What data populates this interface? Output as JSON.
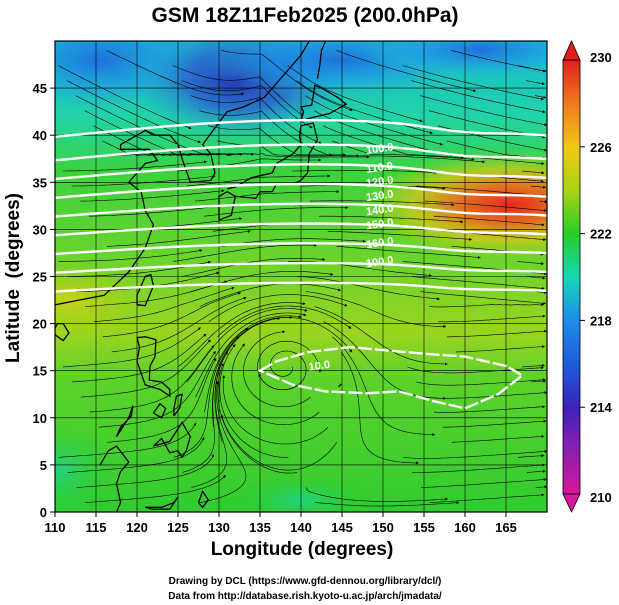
{
  "chart_data": {
    "type": "heatmap",
    "title": "GSM 18Z11Feb2025 (200.0hPa)",
    "xlabel": "Longitude (degrees)",
    "ylabel": "Latitude  (degrees)",
    "xlim": [
      110,
      170
    ],
    "ylim": [
      0,
      50
    ],
    "x_ticks": [
      "110",
      "115",
      "120",
      "125",
      "130",
      "135",
      "140",
      "145",
      "150",
      "155",
      "160",
      "165"
    ],
    "y_ticks": [
      "0",
      "5",
      "10",
      "15",
      "20",
      "25",
      "30",
      "35",
      "40",
      "45"
    ],
    "colorbar": {
      "range": [
        210,
        230
      ],
      "ticks": [
        "210",
        "214",
        "218",
        "222",
        "226",
        "230"
      ],
      "colors": [
        "#d8189a",
        "#3c22b8",
        "#1e8ce8",
        "#14d8b4",
        "#28cc28",
        "#a8d414",
        "#f0c814",
        "#f07a1e",
        "#e01e1e"
      ]
    },
    "field_estimates": [
      {
        "region": "northwest corner (near 110E 48N)",
        "value": 215
      },
      {
        "region": "east of Japan core (near 133E 45N)",
        "value": 213.5
      },
      {
        "region": "warm band (near 162E 34N)",
        "value": 227.5
      },
      {
        "region": "subtropical belt (25-32N)",
        "value": 223
      },
      {
        "region": "tropics (0-20N)",
        "value": 220.5
      }
    ],
    "contour_labels": [
      "100.0",
      "110.0",
      "120.0",
      "130.0",
      "140.0",
      "150.0",
      "160.0",
      "100.0",
      "10.0"
    ],
    "credits": [
      "Drawing by DCL (https://www.gfd-dennou.org/library/dcl/)",
      "Data from http://database.rish.kyoto-u.ac.jp/arch/jmadata/"
    ]
  }
}
